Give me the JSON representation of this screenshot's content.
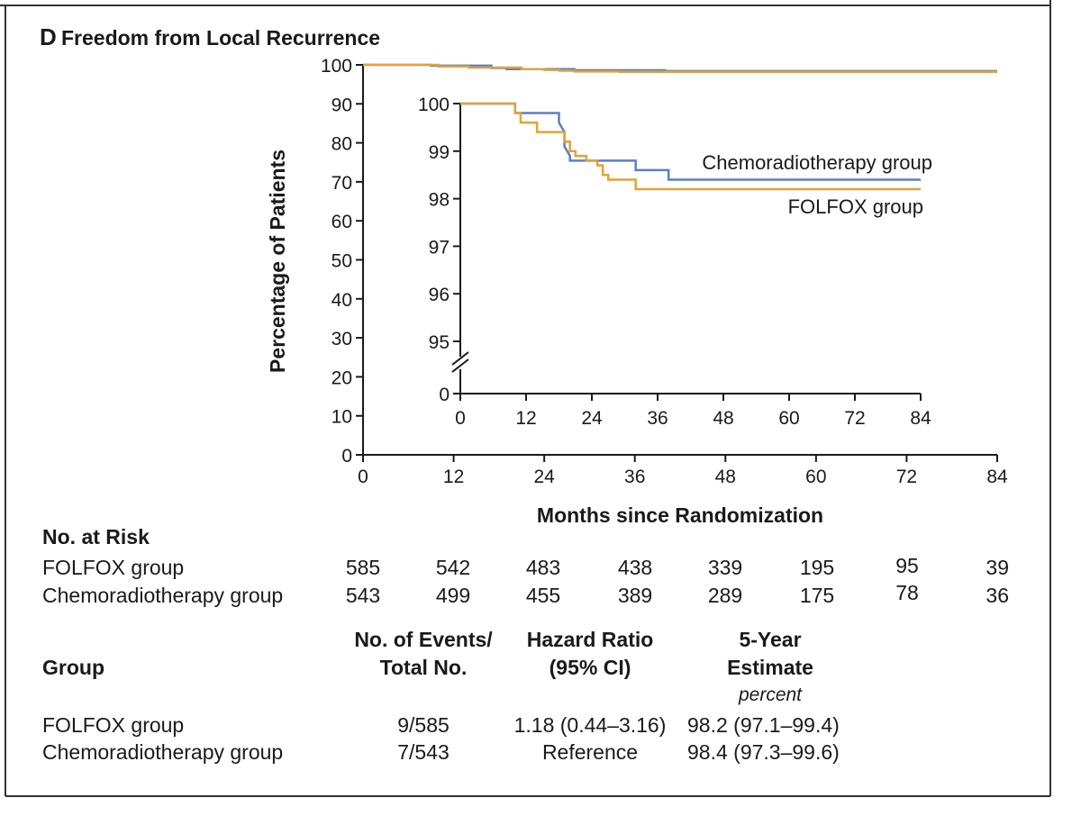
{
  "panel": {
    "letter": "D",
    "title": "Freedom from Local Recurrence"
  },
  "colors": {
    "chemoradiotherapy": "#5b7fc4",
    "folfox": "#e0a33a",
    "axis": "#1a1a1a"
  },
  "chart_data": {
    "type": "line",
    "title": "Freedom from Local Recurrence",
    "xlabel": "Months since Randomization",
    "ylabel": "Percentage of Patients",
    "xlim": [
      0,
      84
    ],
    "ylim": [
      0,
      100
    ],
    "xticks": [
      0,
      12,
      24,
      36,
      48,
      60,
      72,
      84
    ],
    "yticks": [
      0,
      10,
      20,
      30,
      40,
      50,
      60,
      70,
      80,
      90,
      100
    ],
    "series": [
      {
        "name": "Chemoradiotherapy group",
        "color_key": "chemoradiotherapy",
        "x": [
          0,
          9,
          17,
          19,
          28,
          40,
          84
        ],
        "y": [
          100,
          99.8,
          99.2,
          98.9,
          98.6,
          98.4,
          98.4
        ]
      },
      {
        "name": "FOLFOX group",
        "color_key": "folfox",
        "x": [
          0,
          10,
          14,
          21,
          24,
          26,
          28,
          34,
          84
        ],
        "y": [
          100,
          99.6,
          99.3,
          98.9,
          98.7,
          98.5,
          98.3,
          98.2,
          98.2
        ]
      }
    ],
    "inset": {
      "xlim": [
        0,
        84
      ],
      "ylim": [
        94.3,
        100
      ],
      "xticks": [
        0,
        12,
        24,
        36,
        48,
        60,
        72,
        84
      ],
      "yticks": [
        95,
        96,
        97,
        98,
        99,
        100
      ],
      "axis_break": true,
      "bottom_tick": 0,
      "series": [
        {
          "name": "Chemoradiotherapy group",
          "color_key": "chemoradiotherapy",
          "x": [
            0,
            10,
            10,
            18,
            18,
            19,
            19,
            20,
            20,
            32,
            32,
            38,
            38,
            84
          ],
          "y": [
            100,
            100,
            99.8,
            99.8,
            99.6,
            99.4,
            99.1,
            98.9,
            98.8,
            98.8,
            98.6,
            98.6,
            98.4,
            98.4
          ]
        },
        {
          "name": "FOLFOX group",
          "color_key": "folfox",
          "x": [
            0,
            10,
            10,
            11,
            11,
            14,
            14,
            19,
            19,
            20,
            20,
            21,
            21,
            23,
            23,
            25,
            25,
            26,
            26,
            27,
            27,
            32,
            32,
            84
          ],
          "y": [
            100,
            100,
            99.8,
            99.8,
            99.6,
            99.6,
            99.4,
            99.4,
            99.2,
            99.2,
            99.0,
            99.0,
            98.9,
            98.9,
            98.8,
            98.8,
            98.7,
            98.7,
            98.5,
            98.5,
            98.4,
            98.4,
            98.2,
            98.2
          ]
        }
      ],
      "labels": [
        {
          "text": "Chemoradiotherapy group",
          "series": "Chemoradiotherapy group"
        },
        {
          "text": "FOLFOX group",
          "series": "FOLFOX group"
        }
      ]
    }
  },
  "risk_table": {
    "title": "No. at Risk",
    "rows": [
      {
        "group": "FOLFOX group",
        "values": [
          "585",
          "542",
          "483",
          "438",
          "339",
          "195",
          "95",
          "39"
        ]
      },
      {
        "group": "Chemoradiotherapy group",
        "values": [
          "543",
          "499",
          "455",
          "389",
          "289",
          "175",
          "78",
          "36"
        ]
      }
    ]
  },
  "summary_table": {
    "headers": {
      "group": "Group",
      "events_line1": "No. of Events/",
      "events_line2": "Total No.",
      "hr_line1": "Hazard Ratio",
      "hr_line2": "(95% CI)",
      "est_line1": "5-Year",
      "est_line2": "Estimate",
      "est_unit": "percent"
    },
    "rows": [
      {
        "group": "FOLFOX group",
        "events": "9/585",
        "hr": "1.18 (0.44–3.16)",
        "estimate": "98.2 (97.1–99.4)"
      },
      {
        "group": "Chemoradiotherapy group",
        "events": "7/543",
        "hr": "Reference",
        "estimate": "98.4 (97.3–99.6)"
      }
    ]
  }
}
